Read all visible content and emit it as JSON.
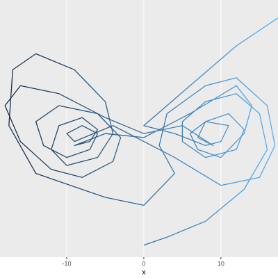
{
  "chart_data": {
    "type": "line",
    "x_label": "x",
    "xlim": [
      -18.65,
      17.4
    ],
    "ylim": [
      -3,
      61.5
    ],
    "xticks": [
      -10,
      0,
      10
    ],
    "grid": true,
    "color_low": "#132B43",
    "color_high": "#56B1F7",
    "x": [
      0,
      3,
      8,
      13,
      16,
      15,
      12,
      8,
      5,
      5,
      8,
      12,
      13,
      11,
      8,
      7,
      9,
      5,
      0,
      -5,
      -11,
      -16,
      -18,
      -16,
      -12,
      -8,
      -4,
      -3,
      -6,
      -11,
      -14,
      -13,
      -10,
      -7,
      -6,
      -8,
      -10,
      -9,
      -4,
      0,
      4,
      10,
      15,
      17,
      16,
      12,
      8,
      3,
      2,
      4,
      0,
      -5,
      -14,
      -17.5,
      -17,
      -14,
      -9,
      -5,
      -4,
      -6,
      -10,
      -12,
      -11,
      -8,
      -6,
      -7,
      -9,
      -5,
      0,
      6,
      12,
      14,
      13,
      10,
      7,
      6,
      8,
      11,
      10,
      8,
      4,
      0,
      6,
      12,
      17.4
    ],
    "values": [
      0,
      2,
      6,
      14,
      24,
      33,
      38,
      36,
      31,
      26,
      22,
      24,
      29,
      33,
      31,
      27,
      25,
      30,
      28,
      32,
      38,
      40,
      35,
      26,
      19,
      17,
      21,
      27,
      33,
      35,
      31,
      25,
      22,
      24,
      28,
      30,
      28,
      26,
      30,
      26,
      22,
      15,
      17,
      25,
      35,
      42,
      40,
      33,
      25,
      18,
      10,
      12,
      18,
      30,
      44,
      48,
      44,
      36,
      28,
      22,
      20,
      24,
      30,
      32,
      29,
      26,
      25,
      28,
      27,
      33,
      40,
      35,
      28,
      22,
      24,
      28,
      31,
      30,
      26,
      25,
      28,
      30,
      40,
      50,
      57
    ]
  }
}
